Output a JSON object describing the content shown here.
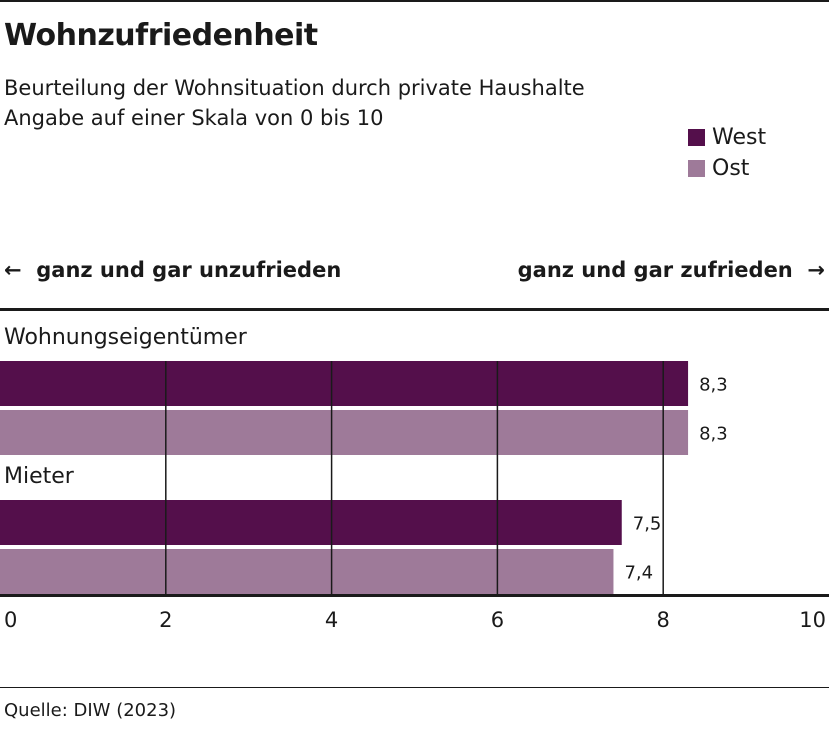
{
  "chart_data": {
    "type": "bar",
    "orientation": "horizontal",
    "title": "Wohnzufriedenheit",
    "subtitle_lines": [
      "Beurteilung der Wohnsituation durch private Haushalte",
      "Angabe auf einer Skala von 0 bis 10"
    ],
    "direction_left": "ganz und gar unzufrieden",
    "direction_right": "ganz und gar zufrieden",
    "groups": [
      "Wohnungseigentümer",
      "Mieter"
    ],
    "series": [
      {
        "name": "West",
        "color": "#540f4b",
        "values": [
          8.3,
          7.5
        ],
        "labels": [
          "8,3",
          "7,5"
        ]
      },
      {
        "name": "Ost",
        "color": "#9e7a99",
        "values": [
          8.3,
          7.4
        ],
        "labels": [
          "8,3",
          "7,4"
        ]
      }
    ],
    "xlim": [
      0,
      10
    ],
    "xticks": [
      0,
      2,
      4,
      6,
      8,
      10
    ],
    "xtick_labels": [
      "0",
      "2",
      "4",
      "6",
      "8",
      "10"
    ],
    "grid": true,
    "legend_position": "top-right"
  },
  "source": "Quelle: DIW (2023)"
}
